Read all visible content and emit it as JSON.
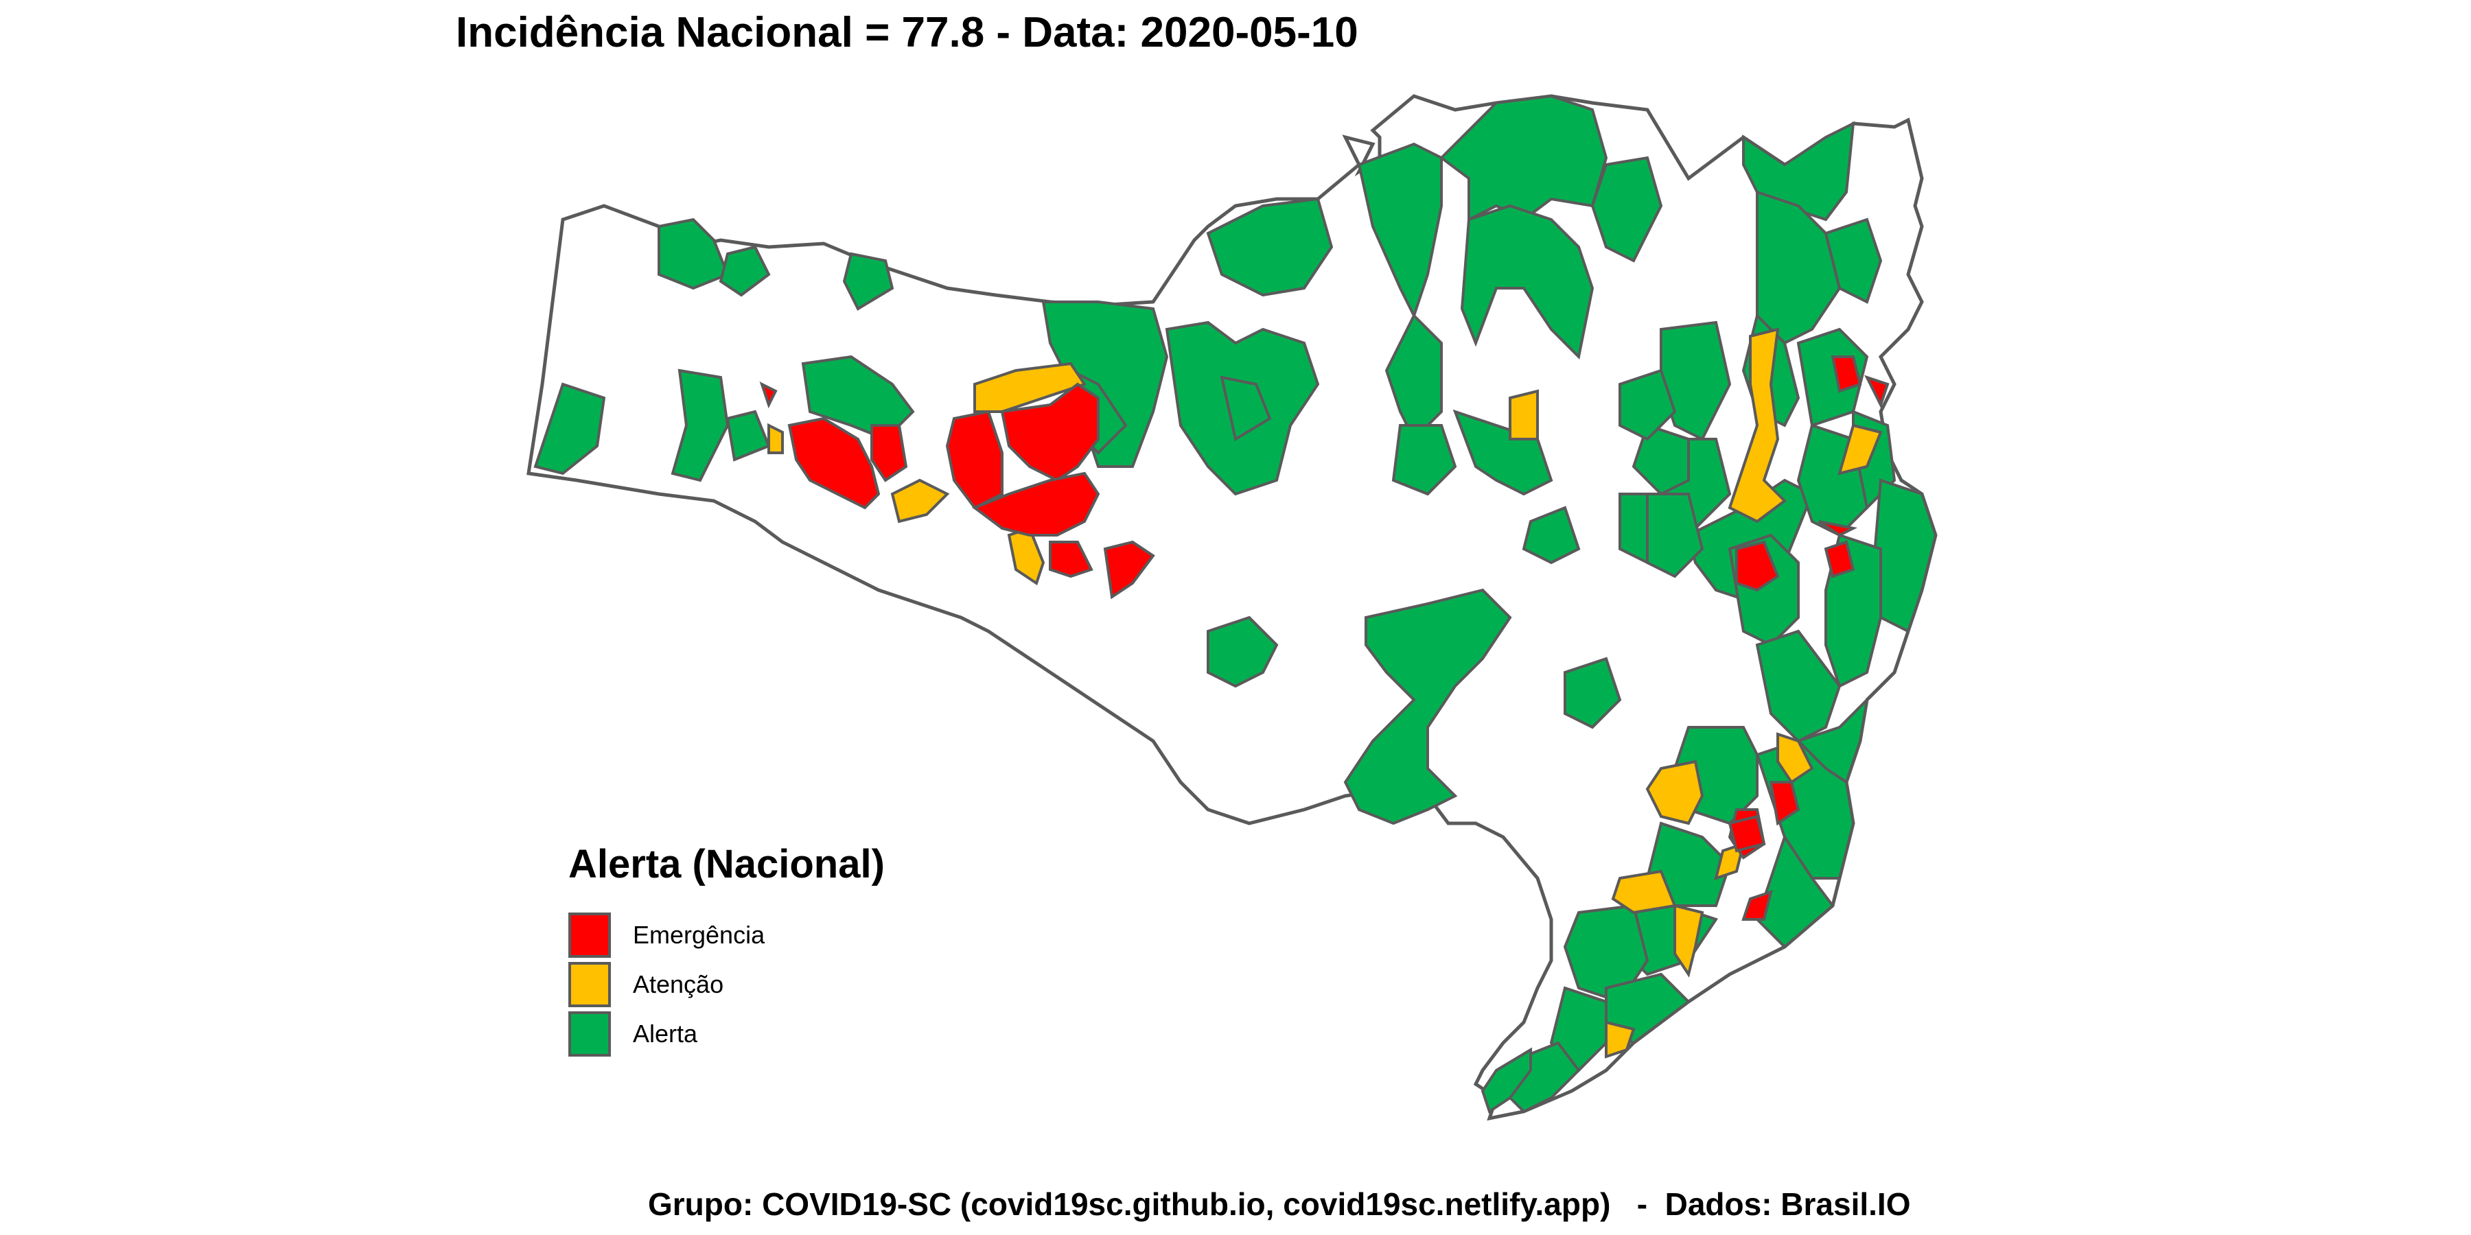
{
  "title": "Incidência Nacional = 77.8 - Data:  2020-05-10",
  "legend": {
    "title": "Alerta (Nacional)",
    "items": [
      {
        "label": "Emergência",
        "color": "#ff0000"
      },
      {
        "label": "Atenção",
        "color": "#ffc000"
      },
      {
        "label": "Alerta",
        "color": "#00b050"
      }
    ]
  },
  "caption": "Grupo: COVID19-SC (covid19sc.github.io, covid19sc.netlify.app)   -  Dados: Brasil.IO",
  "colors": {
    "emergencia": "#ff0000",
    "atencao": "#ffc000",
    "alerta": "#00b050",
    "sem_alerta": "#ffffff",
    "border": "#5a5a5a"
  }
}
